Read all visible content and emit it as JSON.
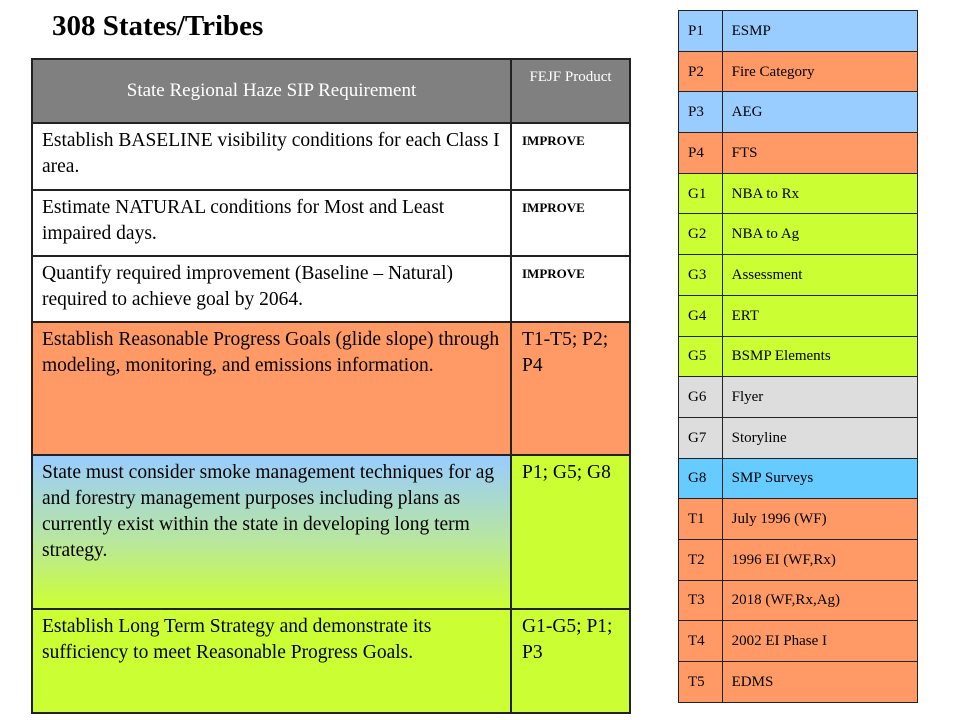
{
  "title": "308 States/Tribes",
  "main_table": {
    "header": {
      "requirement": "State Regional Haze SIP Requirement",
      "product": "FEJF Product"
    },
    "rows": [
      {
        "requirement": "Establish BASELINE visibility conditions for each Class I area.",
        "product": "IMPROVE",
        "color": "#ffffff"
      },
      {
        "requirement": "Estimate NATURAL conditions for Most and Least impaired days.",
        "product": "IMPROVE",
        "color": "#ffffff"
      },
      {
        "requirement": "Quantify required improvement (Baseline – Natural) required to achieve goal by 2064.",
        "product": "IMPROVE",
        "color": "#ffffff"
      },
      {
        "requirement": "Establish Reasonable Progress Goals (glide slope) through modeling, monitoring, and emissions information.",
        "product": "T1-T5; P2; P4",
        "color": "#ff9966"
      },
      {
        "requirement": "State must consider smoke management techniques for ag and forestry management purposes including plans as currently exist within the state in developing long term strategy.",
        "product": "P1; G5; G8",
        "color": "#ccff33"
      },
      {
        "requirement": "Establish Long Term Strategy and demonstrate its sufficiency to meet Reasonable Progress Goals.",
        "product": "G1-G5; P1; P3",
        "color": "#ccff33"
      }
    ]
  },
  "legend_table": [
    {
      "code": "P1",
      "label": "ESMP",
      "color": "#99ccff"
    },
    {
      "code": "P2",
      "label": "Fire Category",
      "color": "#ff9966"
    },
    {
      "code": "P3",
      "label": "AEG",
      "color": "#99ccff"
    },
    {
      "code": "P4",
      "label": "FTS",
      "color": "#ff9966"
    },
    {
      "code": "G1",
      "label": "NBA to Rx",
      "color": "#ccff33"
    },
    {
      "code": "G2",
      "label": "NBA to Ag",
      "color": "#ccff33"
    },
    {
      "code": "G3",
      "label": "Assessment",
      "color": "#ccff33"
    },
    {
      "code": "G4",
      "label": "ERT",
      "color": "#ccff33"
    },
    {
      "code": "G5",
      "label": "BSMP Elements",
      "color": "#ccff33"
    },
    {
      "code": "G6",
      "label": "Flyer",
      "color": "#dddddd"
    },
    {
      "code": "G7",
      "label": "Storyline",
      "color": "#dddddd"
    },
    {
      "code": "G8",
      "label": "SMP Surveys",
      "color": "#66ccff"
    },
    {
      "code": "T1",
      "label": "July 1996 (WF)",
      "color": "#ff9966"
    },
    {
      "code": "T2",
      "label": "1996 EI (WF,Rx)",
      "color": "#ff9966"
    },
    {
      "code": "T3",
      "label": "2018 (WF,Rx,Ag)",
      "color": "#ff9966"
    },
    {
      "code": "T4",
      "label": "2002 EI Phase I",
      "color": "#ff9966"
    },
    {
      "code": "T5",
      "label": "EDMS",
      "color": "#ff9966"
    }
  ]
}
